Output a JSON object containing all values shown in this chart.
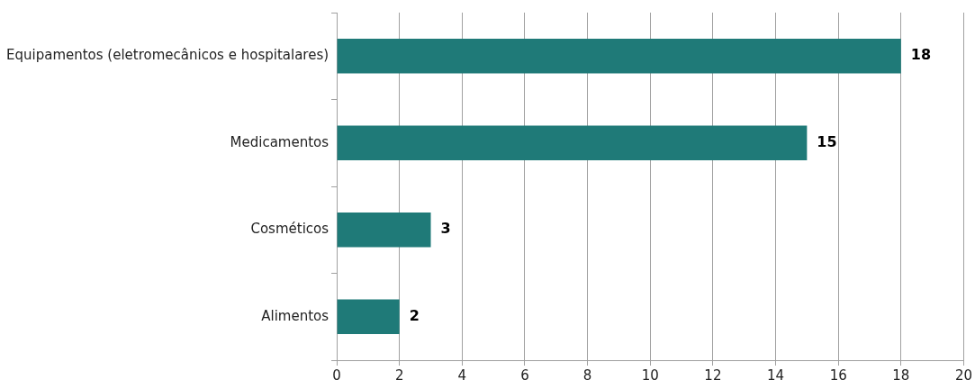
{
  "chart_data": {
    "type": "bar",
    "orientation": "horizontal",
    "categories": [
      "Equipamentos (eletromecânicos e hospitalares)",
      "Medicamentos",
      "Cosméticos",
      "Alimentos"
    ],
    "values": [
      18,
      15,
      3,
      2
    ],
    "color": "#1f7a78",
    "xlim": [
      0,
      20
    ],
    "xticks": [
      0,
      2,
      4,
      6,
      8,
      10,
      12,
      14,
      16,
      18,
      20
    ],
    "grid": "x",
    "data_labels": true,
    "legend": false
  }
}
